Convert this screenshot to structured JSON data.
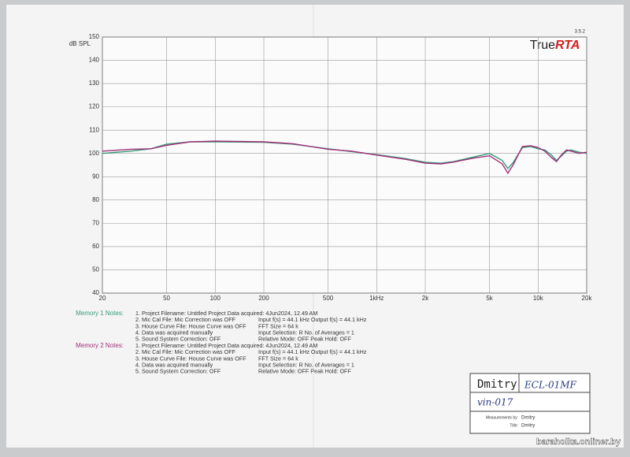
{
  "chart_data": {
    "type": "line",
    "version": "3.5.2",
    "logo": {
      "part1": "True",
      "part2": "RTA"
    },
    "ylabel": "dB SPL",
    "xscale": "log",
    "grid": true,
    "x": [
      20,
      30,
      40,
      50,
      70,
      100,
      200,
      300,
      500,
      700,
      1000,
      1500,
      2000,
      2500,
      3000,
      4000,
      5000,
      6000,
      6500,
      7000,
      8000,
      9000,
      10000,
      11000,
      12000,
      13000,
      14000,
      15000,
      16000,
      18000,
      20000
    ],
    "series": [
      {
        "name": "Memory 1",
        "color": "#3a9a78",
        "values": [
          100,
          101,
          102,
          104,
          105,
          105,
          104.8,
          104,
          102,
          100.8,
          99.5,
          97.8,
          96.2,
          95.8,
          96.5,
          98.5,
          100,
          97,
          93.5,
          96,
          102.5,
          103,
          102,
          101.5,
          99.5,
          97,
          99,
          101,
          101.5,
          100.5,
          100
        ]
      },
      {
        "name": "Memory 2",
        "color": "#a0307a",
        "values": [
          101,
          101.8,
          102,
          103.5,
          105,
          105.3,
          105,
          104.2,
          101.8,
          101,
          99.3,
          97.5,
          95.8,
          95.5,
          96.3,
          98,
          99,
          95.5,
          91.5,
          95,
          103,
          103.3,
          102.5,
          101,
          98.5,
          96.5,
          99.5,
          101.5,
          101,
          100,
          100.5
        ]
      }
    ],
    "xlim": [
      20,
      20000
    ],
    "xticks": [
      20,
      50,
      100,
      200,
      500,
      {
        "value": 1000,
        "label": "1kHz"
      },
      {
        "value": 2000,
        "label": "2k"
      },
      {
        "value": 5000,
        "label": "5k"
      },
      {
        "value": 10000,
        "label": "10k"
      },
      {
        "value": 20000,
        "label": "20k"
      }
    ],
    "ylim": [
      40,
      150
    ],
    "yticks": [
      40,
      50,
      60,
      70,
      80,
      90,
      100,
      110,
      120,
      130,
      140,
      150
    ],
    "notes": [
      {
        "title": "Memory 1 Notes:",
        "lines": [
          [
            "1. Project Filename: Untitled Project  Data acquired: 4Jun2024, 12.49 AM",
            ""
          ],
          [
            "2. Mic Cal File: Mic Correction was OFF",
            "Input f(s) = 44.1 kHz   Output f(s) = 44.1 kHz"
          ],
          [
            "3. House Curve File: House Curve was OFF",
            "FFT Size = 64 k"
          ],
          [
            "4. Data was acquired manually",
            "Input Selection: R     No. of Averages = 1"
          ],
          [
            "5. Sound System Correction: OFF",
            "Relative Mode:  OFF   Peak Hold: OFF"
          ]
        ]
      },
      {
        "title": "Memory 2 Notes:",
        "lines": [
          [
            "1. Project Filename: Untitled Project  Data acquired: 4Jun2024, 12.49 AM",
            ""
          ],
          [
            "2. Mic Cal File: Mic Correction was OFF",
            "Input f(s) = 44.1 kHz   Output f(s) = 44.1 kHz"
          ],
          [
            "3. House Curve File: House Curve was OFF",
            "FFT Size = 64 k"
          ],
          [
            "4. Data was acquired manually",
            "Input Selection: R     No. of Averages = 1"
          ],
          [
            "5. Sound System Correction: OFF",
            "Relative Mode:  OFF   Peak Hold: OFF"
          ]
        ]
      }
    ],
    "titlebox": {
      "name": "Dmitry",
      "hand1": "ECL-01MF",
      "hand2": "vin-017",
      "measured_label": "Measurements by:",
      "measured": "Dmitry",
      "title_label": "Title:",
      "title": "Dmitry"
    },
    "watermark": "baraholka.onliner.by"
  }
}
